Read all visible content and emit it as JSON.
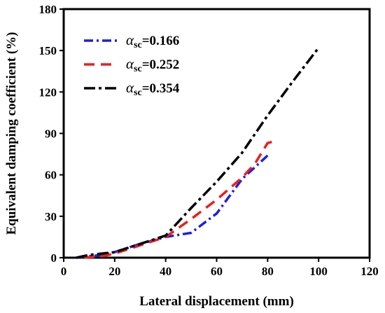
{
  "chart_data": {
    "type": "line",
    "title": "",
    "xlabel": "Lateral displacement (mm)",
    "ylabel": "Equivalent damping coefficient (%)",
    "xlim": [
      0,
      120
    ],
    "ylim": [
      0,
      180
    ],
    "xticks": [
      "0",
      "20",
      "40",
      "60",
      "80",
      "100",
      "120"
    ],
    "yticks": [
      "0",
      "30",
      "60",
      "90",
      "120",
      "150",
      "180"
    ],
    "grid": false,
    "legend_position": "top-left",
    "series": [
      {
        "name": "αsc=0.166",
        "legend_symbol": "α",
        "legend_subscript": "sc",
        "legend_value": "=0.166",
        "color": "#1f1fe0",
        "dash": "dash-dot",
        "x": [
          5,
          10,
          15,
          20,
          30,
          40,
          50,
          60,
          70,
          80
        ],
        "y": [
          0,
          1,
          2,
          4,
          10,
          15,
          18,
          32,
          57,
          74
        ]
      },
      {
        "name": "αsc=0.252",
        "legend_symbol": "α",
        "legend_subscript": "sc",
        "legend_value": "=0.252",
        "color": "#f01c1c",
        "dash": "dash",
        "x": [
          8,
          15,
          20,
          30,
          40,
          50,
          60,
          70,
          75,
          80,
          84
        ],
        "y": [
          0,
          1,
          3,
          9,
          15,
          28,
          42,
          58,
          68,
          83,
          85
        ]
      },
      {
        "name": "αsc=0.354",
        "legend_symbol": "α",
        "legend_subscript": "sc",
        "legend_value": "=0.354",
        "color": "#000000",
        "dash": "dash-dot-long",
        "x": [
          5,
          10,
          20,
          30,
          40,
          50,
          60,
          70,
          80,
          90,
          100
        ],
        "y": [
          0,
          2,
          4,
          10,
          16,
          36,
          55,
          76,
          103,
          128,
          152
        ]
      }
    ]
  }
}
